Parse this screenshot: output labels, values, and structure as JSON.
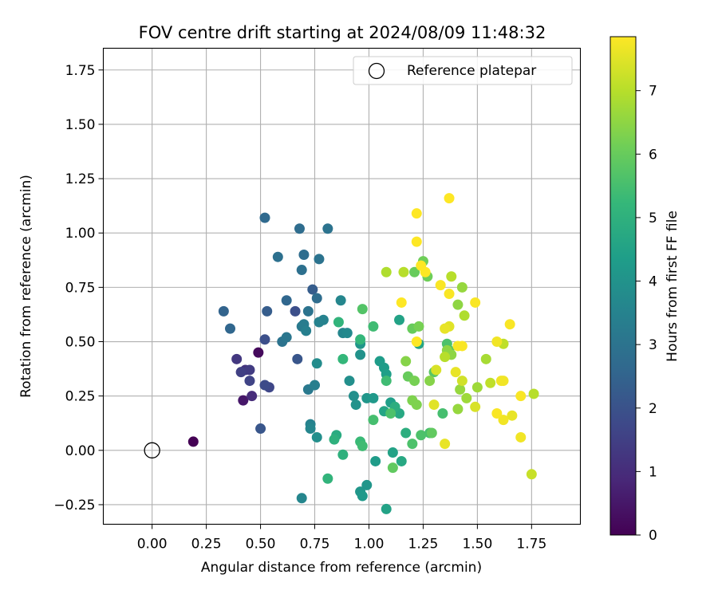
{
  "chart_data": {
    "type": "scatter",
    "title": "FOV centre drift starting at 2024/08/09 11:48:32",
    "xlabel": "Angular distance from reference (arcmin)",
    "ylabel": "Rotation from reference (arcmin)",
    "xlim": [
      -0.225,
      1.975
    ],
    "ylim": [
      -0.34,
      1.85
    ],
    "x_ticks": [
      0.0,
      0.25,
      0.5,
      0.75,
      1.0,
      1.25,
      1.5,
      1.75
    ],
    "x_tick_labels": [
      "0.00",
      "0.25",
      "0.50",
      "0.75",
      "1.00",
      "1.25",
      "1.50",
      "1.75"
    ],
    "y_ticks": [
      -0.25,
      0.0,
      0.25,
      0.5,
      0.75,
      1.0,
      1.25,
      1.5,
      1.75
    ],
    "y_tick_labels": [
      "−0.25",
      "0.00",
      "0.25",
      "0.50",
      "0.75",
      "1.00",
      "1.25",
      "1.50",
      "1.75"
    ],
    "grid": true,
    "legend": {
      "position": "top-right",
      "entries": [
        "Reference platepar"
      ]
    },
    "reference_point": {
      "x": 0.0,
      "y": 0.0,
      "marker": "open-circle"
    },
    "colorbar": {
      "label": "Hours from first FF file",
      "range": [
        0,
        7.85
      ],
      "ticks": [
        0,
        1,
        2,
        3,
        4,
        5,
        6,
        7
      ],
      "tick_labels": [
        "0",
        "1",
        "2",
        "3",
        "4",
        "5",
        "6",
        "7"
      ],
      "colormap": "viridis",
      "stops": [
        "#440154",
        "#482878",
        "#3e4989",
        "#31688e",
        "#26828e",
        "#1f9e89",
        "#35b779",
        "#6ece58",
        "#b5de2b",
        "#fde725"
      ]
    },
    "points": [
      {
        "x": 0.19,
        "y": 0.04,
        "c": 0.0
      },
      {
        "x": 0.49,
        "y": 0.45,
        "c": 0.2
      },
      {
        "x": 0.42,
        "y": 0.23,
        "c": 0.5
      },
      {
        "x": 0.46,
        "y": 0.25,
        "c": 1.0
      },
      {
        "x": 0.39,
        "y": 0.42,
        "c": 1.3
      },
      {
        "x": 0.43,
        "y": 0.37,
        "c": 1.2
      },
      {
        "x": 0.45,
        "y": 0.37,
        "c": 1.4
      },
      {
        "x": 0.41,
        "y": 0.36,
        "c": 1.5
      },
      {
        "x": 0.45,
        "y": 0.32,
        "c": 1.6
      },
      {
        "x": 0.54,
        "y": 0.29,
        "c": 1.7
      },
      {
        "x": 0.52,
        "y": 0.3,
        "c": 1.8
      },
      {
        "x": 0.52,
        "y": 0.51,
        "c": 1.9
      },
      {
        "x": 0.5,
        "y": 0.1,
        "c": 2.1
      },
      {
        "x": 0.66,
        "y": 0.64,
        "c": 1.9
      },
      {
        "x": 0.67,
        "y": 0.42,
        "c": 2.1
      },
      {
        "x": 0.53,
        "y": 0.64,
        "c": 2.3
      },
      {
        "x": 0.74,
        "y": 0.74,
        "c": 2.3
      },
      {
        "x": 0.33,
        "y": 0.64,
        "c": 2.5
      },
      {
        "x": 0.36,
        "y": 0.56,
        "c": 2.6
      },
      {
        "x": 0.62,
        "y": 0.69,
        "c": 2.6
      },
      {
        "x": 0.52,
        "y": 1.07,
        "c": 2.7
      },
      {
        "x": 0.68,
        "y": 1.02,
        "c": 2.8
      },
      {
        "x": 0.58,
        "y": 0.89,
        "c": 2.9
      },
      {
        "x": 0.7,
        "y": 0.9,
        "c": 2.8
      },
      {
        "x": 0.69,
        "y": 0.83,
        "c": 2.9
      },
      {
        "x": 0.77,
        "y": 0.88,
        "c": 3.0
      },
      {
        "x": 0.81,
        "y": 1.02,
        "c": 3.0
      },
      {
        "x": 0.76,
        "y": 0.7,
        "c": 2.8
      },
      {
        "x": 0.6,
        "y": 0.5,
        "c": 3.0
      },
      {
        "x": 0.62,
        "y": 0.52,
        "c": 3.1
      },
      {
        "x": 0.69,
        "y": 0.57,
        "c": 3.2
      },
      {
        "x": 0.7,
        "y": 0.58,
        "c": 3.3
      },
      {
        "x": 0.72,
        "y": 0.64,
        "c": 3.0
      },
      {
        "x": 0.71,
        "y": 0.55,
        "c": 3.4
      },
      {
        "x": 0.72,
        "y": 0.28,
        "c": 3.2
      },
      {
        "x": 0.75,
        "y": 0.3,
        "c": 3.4
      },
      {
        "x": 0.73,
        "y": 0.12,
        "c": 3.5
      },
      {
        "x": 0.73,
        "y": 0.1,
        "c": 3.6
      },
      {
        "x": 0.69,
        "y": -0.22,
        "c": 3.6
      },
      {
        "x": 0.77,
        "y": 0.59,
        "c": 3.5
      },
      {
        "x": 0.79,
        "y": 0.6,
        "c": 3.5
      },
      {
        "x": 0.87,
        "y": 0.69,
        "c": 3.6
      },
      {
        "x": 0.88,
        "y": 0.54,
        "c": 3.6
      },
      {
        "x": 0.9,
        "y": 0.54,
        "c": 3.7
      },
      {
        "x": 0.76,
        "y": 0.4,
        "c": 3.8
      },
      {
        "x": 0.76,
        "y": 0.06,
        "c": 3.9
      },
      {
        "x": 0.91,
        "y": 0.32,
        "c": 3.9
      },
      {
        "x": 0.93,
        "y": 0.25,
        "c": 3.9
      },
      {
        "x": 0.94,
        "y": 0.21,
        "c": 4.0
      },
      {
        "x": 0.96,
        "y": 0.44,
        "c": 4.0
      },
      {
        "x": 0.96,
        "y": 0.49,
        "c": 4.1
      },
      {
        "x": 0.99,
        "y": 0.24,
        "c": 4.1
      },
      {
        "x": 0.99,
        "y": -0.16,
        "c": 4.1
      },
      {
        "x": 0.96,
        "y": -0.19,
        "c": 4.1
      },
      {
        "x": 0.97,
        "y": -0.21,
        "c": 4.2
      },
      {
        "x": 1.02,
        "y": 0.24,
        "c": 4.2
      },
      {
        "x": 1.03,
        "y": -0.05,
        "c": 4.3
      },
      {
        "x": 1.05,
        "y": 0.41,
        "c": 4.3
      },
      {
        "x": 1.07,
        "y": 0.38,
        "c": 4.3
      },
      {
        "x": 1.08,
        "y": 0.35,
        "c": 4.4
      },
      {
        "x": 1.1,
        "y": 0.22,
        "c": 4.4
      },
      {
        "x": 1.11,
        "y": -0.01,
        "c": 4.5
      },
      {
        "x": 1.14,
        "y": 0.6,
        "c": 4.5
      },
      {
        "x": 1.08,
        "y": -0.27,
        "c": 4.5
      },
      {
        "x": 1.07,
        "y": 0.18,
        "c": 4.6
      },
      {
        "x": 1.14,
        "y": 0.17,
        "c": 4.7
      },
      {
        "x": 1.15,
        "y": -0.05,
        "c": 4.7
      },
      {
        "x": 1.12,
        "y": 0.2,
        "c": 4.9
      },
      {
        "x": 1.17,
        "y": 0.08,
        "c": 4.9
      },
      {
        "x": 1.23,
        "y": 0.49,
        "c": 4.6
      },
      {
        "x": 0.85,
        "y": 0.07,
        "c": 4.8
      },
      {
        "x": 0.84,
        "y": 0.05,
        "c": 5.0
      },
      {
        "x": 0.88,
        "y": -0.02,
        "c": 5.0
      },
      {
        "x": 0.81,
        "y": -0.13,
        "c": 5.1
      },
      {
        "x": 0.86,
        "y": 0.59,
        "c": 5.1
      },
      {
        "x": 0.88,
        "y": 0.42,
        "c": 5.2
      },
      {
        "x": 0.96,
        "y": 0.51,
        "c": 5.2
      },
      {
        "x": 0.96,
        "y": 0.04,
        "c": 5.3
      },
      {
        "x": 0.97,
        "y": 0.02,
        "c": 5.4
      },
      {
        "x": 1.02,
        "y": 0.57,
        "c": 5.4
      },
      {
        "x": 1.08,
        "y": 0.32,
        "c": 5.4
      },
      {
        "x": 1.02,
        "y": 0.14,
        "c": 5.5
      },
      {
        "x": 1.1,
        "y": 0.17,
        "c": 5.6
      },
      {
        "x": 1.2,
        "y": 0.03,
        "c": 5.6
      },
      {
        "x": 1.24,
        "y": 0.07,
        "c": 5.6
      },
      {
        "x": 1.28,
        "y": 0.08,
        "c": 5.5
      },
      {
        "x": 1.34,
        "y": 0.17,
        "c": 5.5
      },
      {
        "x": 1.29,
        "y": 0.08,
        "c": 5.9
      },
      {
        "x": 1.3,
        "y": 0.36,
        "c": 5.8
      },
      {
        "x": 1.36,
        "y": 0.49,
        "c": 5.6
      },
      {
        "x": 1.37,
        "y": 0.46,
        "c": 5.7
      },
      {
        "x": 0.97,
        "y": 0.65,
        "c": 5.7
      },
      {
        "x": 1.11,
        "y": -0.08,
        "c": 5.9
      },
      {
        "x": 1.18,
        "y": 0.34,
        "c": 6.0
      },
      {
        "x": 1.2,
        "y": 0.56,
        "c": 6.0
      },
      {
        "x": 1.21,
        "y": 0.82,
        "c": 6.0
      },
      {
        "x": 1.25,
        "y": 0.87,
        "c": 6.1
      },
      {
        "x": 1.27,
        "y": 0.8,
        "c": 6.1
      },
      {
        "x": 1.23,
        "y": 0.57,
        "c": 6.2
      },
      {
        "x": 1.21,
        "y": 0.32,
        "c": 6.2
      },
      {
        "x": 1.2,
        "y": 0.23,
        "c": 6.3
      },
      {
        "x": 1.22,
        "y": 0.21,
        "c": 6.3
      },
      {
        "x": 1.17,
        "y": 0.41,
        "c": 6.4
      },
      {
        "x": 1.28,
        "y": 0.32,
        "c": 6.4
      },
      {
        "x": 1.36,
        "y": 0.46,
        "c": 6.5
      },
      {
        "x": 1.38,
        "y": 0.44,
        "c": 6.5
      },
      {
        "x": 1.41,
        "y": 0.67,
        "c": 6.5
      },
      {
        "x": 1.43,
        "y": 0.75,
        "c": 6.6
      },
      {
        "x": 1.42,
        "y": 0.28,
        "c": 6.6
      },
      {
        "x": 1.41,
        "y": 0.19,
        "c": 6.6
      },
      {
        "x": 1.45,
        "y": 0.24,
        "c": 6.7
      },
      {
        "x": 1.5,
        "y": 0.29,
        "c": 6.7
      },
      {
        "x": 1.54,
        "y": 0.42,
        "c": 6.8
      },
      {
        "x": 1.44,
        "y": 0.62,
        "c": 6.9
      },
      {
        "x": 1.08,
        "y": 0.82,
        "c": 6.9
      },
      {
        "x": 1.16,
        "y": 0.82,
        "c": 7.0
      },
      {
        "x": 1.35,
        "y": 0.43,
        "c": 7.0
      },
      {
        "x": 1.38,
        "y": 0.8,
        "c": 7.0
      },
      {
        "x": 1.56,
        "y": 0.31,
        "c": 7.1
      },
      {
        "x": 1.62,
        "y": 0.49,
        "c": 7.1
      },
      {
        "x": 1.75,
        "y": -0.11,
        "c": 7.2
      },
      {
        "x": 1.76,
        "y": 0.26,
        "c": 7.0
      },
      {
        "x": 1.43,
        "y": 0.32,
        "c": 7.3
      },
      {
        "x": 1.49,
        "y": 0.2,
        "c": 7.4
      },
      {
        "x": 1.31,
        "y": 0.37,
        "c": 7.4
      },
      {
        "x": 1.3,
        "y": 0.21,
        "c": 7.5
      },
      {
        "x": 1.37,
        "y": 0.57,
        "c": 7.5
      },
      {
        "x": 1.35,
        "y": 0.56,
        "c": 7.6
      },
      {
        "x": 1.4,
        "y": 0.36,
        "c": 7.6
      },
      {
        "x": 1.35,
        "y": 0.03,
        "c": 7.6
      },
      {
        "x": 1.66,
        "y": 0.16,
        "c": 7.6
      },
      {
        "x": 1.7,
        "y": 0.06,
        "c": 7.7
      },
      {
        "x": 1.61,
        "y": 0.32,
        "c": 7.7
      },
      {
        "x": 1.62,
        "y": 0.32,
        "c": 7.7
      },
      {
        "x": 1.59,
        "y": 0.5,
        "c": 7.7
      },
      {
        "x": 1.62,
        "y": 0.14,
        "c": 7.7
      },
      {
        "x": 1.59,
        "y": 0.17,
        "c": 7.8
      },
      {
        "x": 1.65,
        "y": 0.58,
        "c": 7.8
      },
      {
        "x": 1.7,
        "y": 0.25,
        "c": 7.8
      },
      {
        "x": 1.49,
        "y": 0.68,
        "c": 7.8
      },
      {
        "x": 1.41,
        "y": 0.48,
        "c": 7.8
      },
      {
        "x": 1.43,
        "y": 0.48,
        "c": 7.8
      },
      {
        "x": 1.33,
        "y": 0.76,
        "c": 7.8
      },
      {
        "x": 1.37,
        "y": 0.72,
        "c": 7.8
      },
      {
        "x": 1.26,
        "y": 0.82,
        "c": 7.9
      },
      {
        "x": 1.24,
        "y": 0.85,
        "c": 7.9
      },
      {
        "x": 1.15,
        "y": 0.68,
        "c": 7.9
      },
      {
        "x": 1.22,
        "y": 0.96,
        "c": 7.9
      },
      {
        "x": 1.22,
        "y": 1.09,
        "c": 7.9
      },
      {
        "x": 1.37,
        "y": 1.16,
        "c": 7.9
      },
      {
        "x": 1.22,
        "y": 0.5,
        "c": 7.9
      }
    ]
  }
}
